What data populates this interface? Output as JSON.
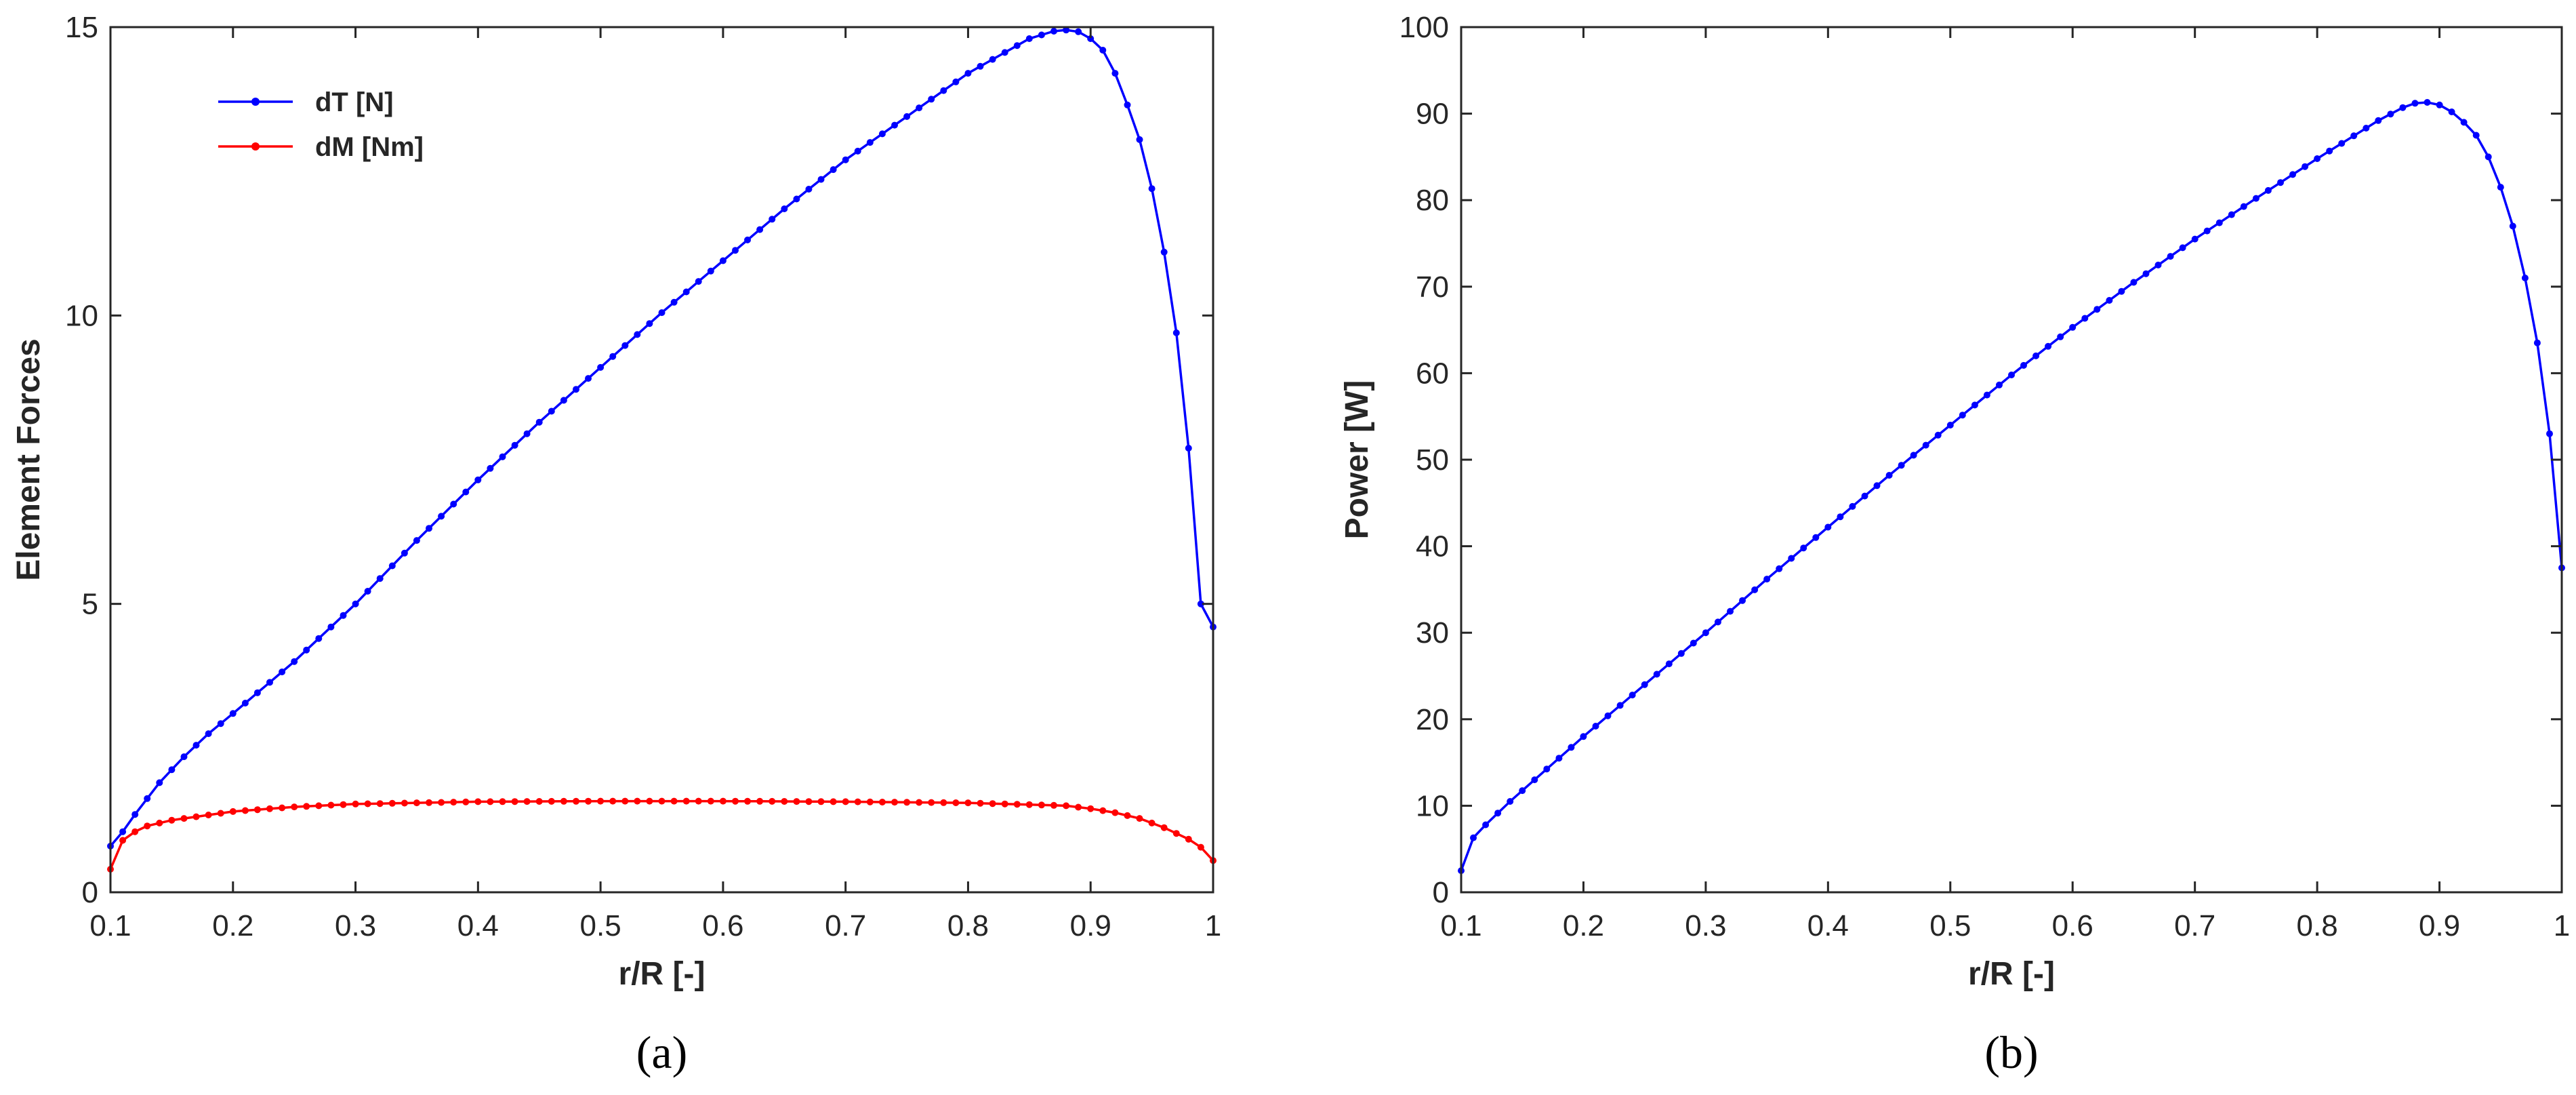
{
  "chart_data": [
    {
      "type": "line",
      "panel_label": "(a)",
      "xlabel": "r/R [-]",
      "ylabel": "Element Forces",
      "xlim": [
        0.1,
        1
      ],
      "ylim": [
        0,
        15
      ],
      "xticks": [
        "0.1",
        "0.2",
        "0.3",
        "0.4",
        "0.5",
        "0.6",
        "0.7",
        "0.8",
        "0.9",
        "1"
      ],
      "yticks": [
        "0",
        "5",
        "10",
        "15"
      ],
      "grid": false,
      "legend_position": "top-left",
      "series": [
        {
          "name": "dT [N]",
          "color": "#0000ff",
          "x": [
            0.1,
            0.11,
            0.12,
            0.14,
            0.16,
            0.18,
            0.2,
            0.25,
            0.3,
            0.35,
            0.4,
            0.45,
            0.5,
            0.55,
            0.6,
            0.65,
            0.7,
            0.75,
            0.8,
            0.85,
            0.87,
            0.88,
            0.89,
            0.9,
            0.91,
            0.92,
            0.93,
            0.94,
            0.95,
            0.96,
            0.97,
            0.98,
            0.99,
            1.0
          ],
          "y": [
            0.8,
            1.05,
            1.35,
            1.9,
            2.35,
            2.75,
            3.1,
            4.0,
            5.0,
            6.1,
            7.15,
            8.15,
            9.1,
            10.05,
            10.95,
            11.85,
            12.7,
            13.45,
            14.2,
            14.8,
            14.93,
            14.95,
            14.92,
            14.8,
            14.6,
            14.2,
            13.65,
            13.05,
            12.2,
            11.1,
            9.7,
            7.7,
            5.0,
            4.6
          ]
        },
        {
          "name": "dM [Nm]",
          "color": "#ff0000",
          "x": [
            0.1,
            0.105,
            0.11,
            0.12,
            0.13,
            0.15,
            0.2,
            0.25,
            0.3,
            0.4,
            0.5,
            0.6,
            0.7,
            0.8,
            0.85,
            0.88,
            0.9,
            0.92,
            0.94,
            0.96,
            0.98,
            0.99,
            1.0
          ],
          "y": [
            0.4,
            0.75,
            0.9,
            1.05,
            1.15,
            1.25,
            1.4,
            1.48,
            1.53,
            1.57,
            1.58,
            1.58,
            1.57,
            1.55,
            1.52,
            1.5,
            1.45,
            1.38,
            1.28,
            1.12,
            0.92,
            0.78,
            0.55
          ]
        }
      ]
    },
    {
      "type": "line",
      "panel_label": "(b)",
      "xlabel": "r/R [-]",
      "ylabel": "Power [W]",
      "xlim": [
        0.1,
        1
      ],
      "ylim": [
        0,
        100
      ],
      "xticks": [
        "0.1",
        "0.2",
        "0.3",
        "0.4",
        "0.5",
        "0.6",
        "0.7",
        "0.8",
        "0.9",
        "1"
      ],
      "yticks": [
        "0",
        "10",
        "20",
        "30",
        "40",
        "50",
        "60",
        "70",
        "80",
        "90",
        "100"
      ],
      "grid": false,
      "series": [
        {
          "color": "#0000ff",
          "x": [
            0.1,
            0.105,
            0.11,
            0.12,
            0.14,
            0.16,
            0.18,
            0.2,
            0.25,
            0.3,
            0.35,
            0.4,
            0.45,
            0.5,
            0.55,
            0.6,
            0.65,
            0.7,
            0.75,
            0.8,
            0.85,
            0.87,
            0.88,
            0.89,
            0.9,
            0.91,
            0.92,
            0.93,
            0.94,
            0.95,
            0.96,
            0.97,
            0.98,
            0.99,
            1.0
          ],
          "y": [
            2.5,
            5.0,
            6.3,
            7.8,
            10.5,
            13.0,
            15.5,
            18.0,
            24.0,
            30.0,
            36.2,
            42.2,
            48.2,
            54.0,
            59.8,
            65.3,
            70.5,
            75.5,
            80.2,
            84.8,
            89.2,
            90.7,
            91.2,
            91.3,
            91.0,
            90.2,
            89.0,
            87.5,
            85.0,
            81.5,
            77.0,
            71.0,
            63.5,
            53.0,
            37.5
          ]
        }
      ]
    }
  ]
}
